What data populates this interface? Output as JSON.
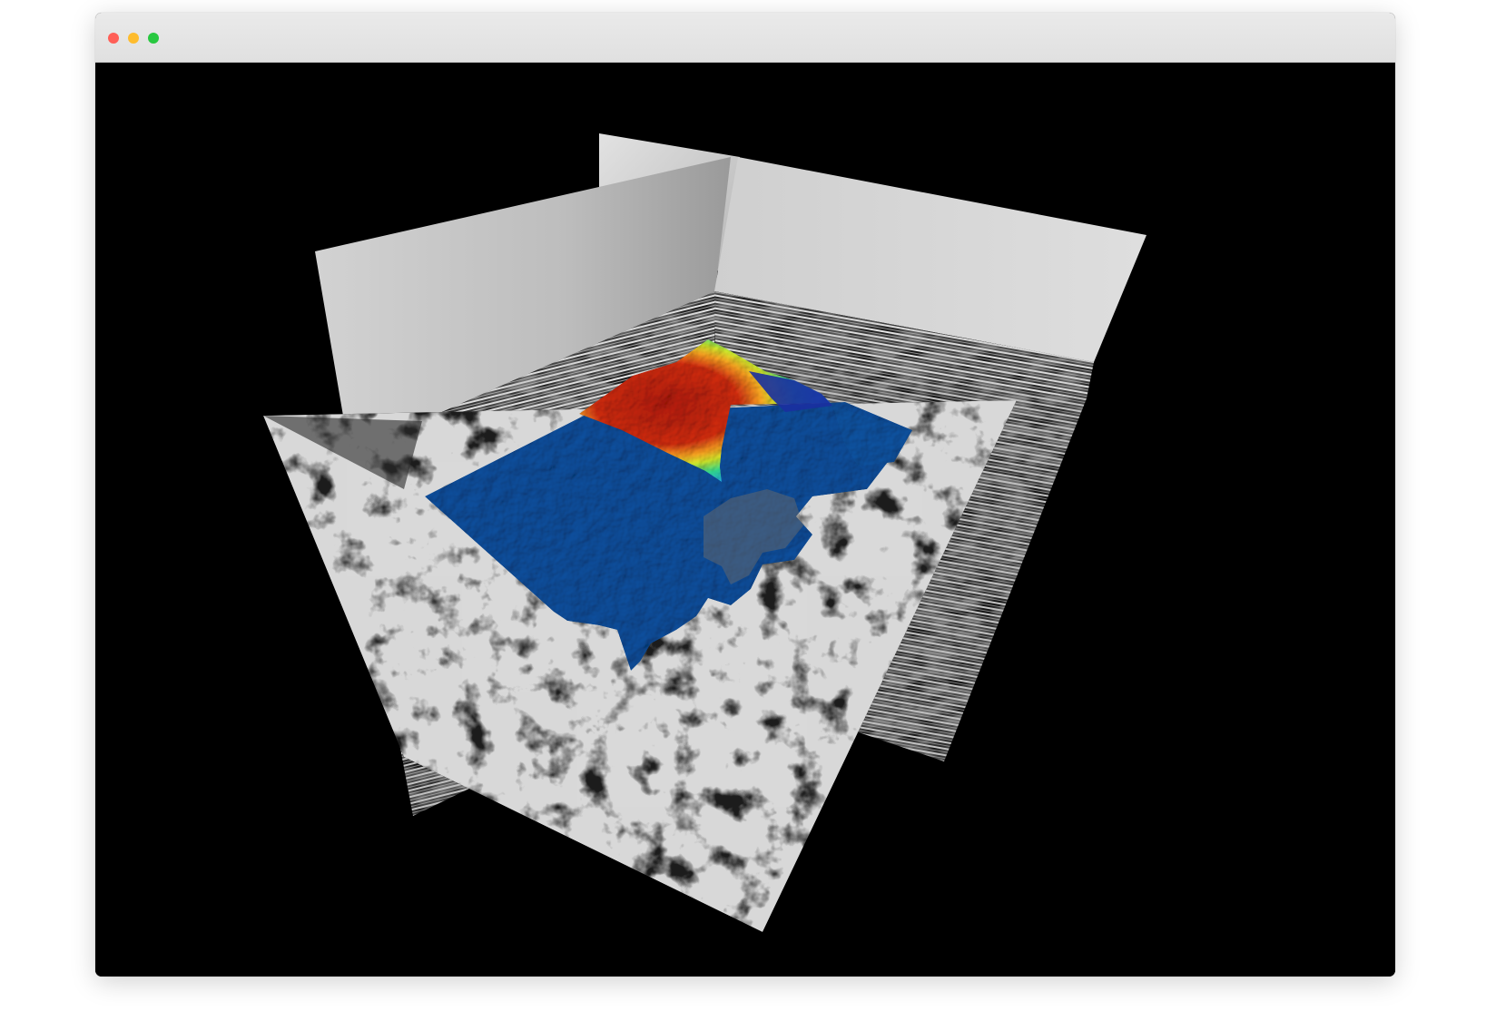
{
  "window": {
    "controls": {
      "close_color": "#ff5f57",
      "minimize_color": "#febc2e",
      "maximize_color": "#28c840"
    }
  },
  "viewport": {
    "background": "#000000",
    "scene": "seismic-volume-3d",
    "horizon_colormap": [
      "#003a7a",
      "#0a56a8",
      "#1f9fe0",
      "#2fd08a",
      "#c8e02a",
      "#f0a020",
      "#d83a14",
      "#a81a08"
    ]
  }
}
